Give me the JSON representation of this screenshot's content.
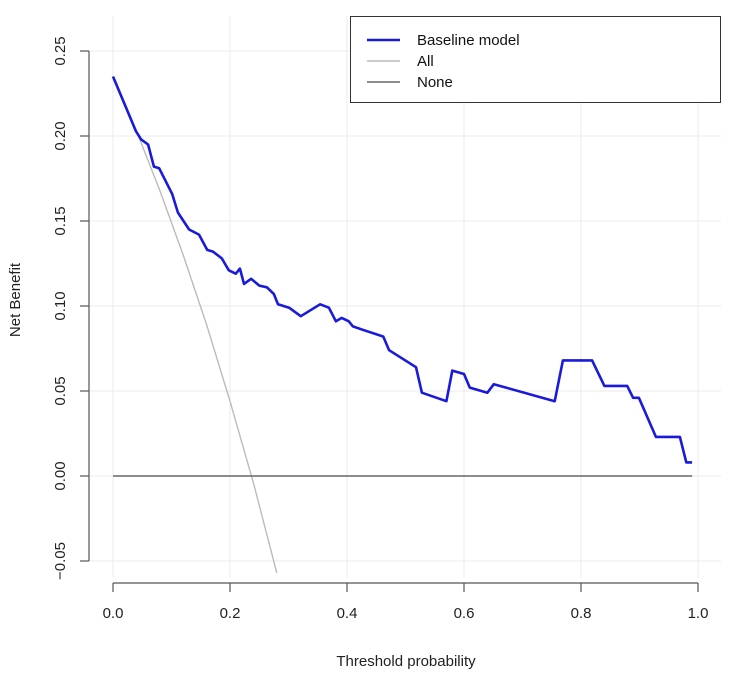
{
  "chart_data": {
    "type": "line",
    "title": "",
    "xlabel": "Threshold probability",
    "ylabel": "Net Benefit",
    "xlim": [
      0.0,
      1.0
    ],
    "ylim": [
      -0.05,
      0.25
    ],
    "x_ticks": [
      "0.0",
      "0.2",
      "0.4",
      "0.6",
      "0.8",
      "1.0"
    ],
    "y_ticks": [
      "−0.05",
      "0.00",
      "0.05",
      "0.10",
      "0.15",
      "0.20",
      "0.25"
    ],
    "grid": true,
    "legend_position": "top-right",
    "series": [
      {
        "name": "Baseline model",
        "color": "#1a1adb",
        "x": [
          0.0,
          0.039,
          0.048,
          0.06,
          0.07,
          0.079,
          0.101,
          0.111,
          0.13,
          0.147,
          0.161,
          0.171,
          0.186,
          0.198,
          0.21,
          0.217,
          0.224,
          0.236,
          0.25,
          0.263,
          0.275,
          0.282,
          0.301,
          0.321,
          0.354,
          0.369,
          0.381,
          0.391,
          0.403,
          0.41,
          0.427,
          0.462,
          0.472,
          0.518,
          0.528,
          0.57,
          0.58,
          0.6,
          0.61,
          0.64,
          0.651,
          0.755,
          0.769,
          0.819,
          0.84,
          0.879,
          0.889,
          0.899,
          0.928,
          0.969,
          0.98,
          0.99
        ],
        "y": [
          0.235,
          0.203,
          0.198,
          0.195,
          0.182,
          0.181,
          0.166,
          0.155,
          0.145,
          0.142,
          0.133,
          0.132,
          0.128,
          0.121,
          0.119,
          0.122,
          0.113,
          0.116,
          0.112,
          0.111,
          0.107,
          0.101,
          0.099,
          0.094,
          0.101,
          0.099,
          0.091,
          0.093,
          0.091,
          0.088,
          0.086,
          0.082,
          0.074,
          0.064,
          0.049,
          0.044,
          0.062,
          0.06,
          0.052,
          0.049,
          0.054,
          0.044,
          0.068,
          0.068,
          0.053,
          0.053,
          0.046,
          0.046,
          0.023,
          0.023,
          0.008,
          0.008
        ]
      },
      {
        "name": "All",
        "color": "#bbbbbb",
        "x": [
          0.0,
          0.04,
          0.08,
          0.12,
          0.16,
          0.2,
          0.24,
          0.28
        ],
        "y": [
          0.235,
          0.203,
          0.168,
          0.13,
          0.089,
          0.044,
          -0.004,
          -0.057
        ]
      },
      {
        "name": "None",
        "color": "#666666",
        "x": [
          0.0,
          0.99
        ],
        "y": [
          0.0,
          0.0
        ]
      }
    ]
  },
  "legend": {
    "items": [
      {
        "label": "Baseline model",
        "color": "#1a1adb"
      },
      {
        "label": "All",
        "color": "#bbbbbb"
      },
      {
        "label": "None",
        "color": "#666666"
      }
    ]
  }
}
